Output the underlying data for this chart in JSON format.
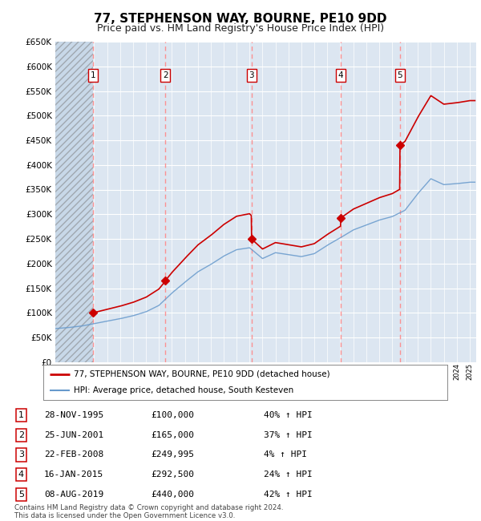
{
  "title": "77, STEPHENSON WAY, BOURNE, PE10 9DD",
  "subtitle": "Price paid vs. HM Land Registry's House Price Index (HPI)",
  "title_fontsize": 11,
  "subtitle_fontsize": 9,
  "ylim": [
    0,
    650000
  ],
  "ytick_vals": [
    0,
    50000,
    100000,
    150000,
    200000,
    250000,
    300000,
    350000,
    400000,
    450000,
    500000,
    550000,
    600000,
    650000
  ],
  "xlim_start": 1993.0,
  "xlim_end": 2025.5,
  "fig_bg": "#ffffff",
  "plot_bg_color": "#dce6f1",
  "sales": [
    {
      "num": 1,
      "year": 1995.917,
      "price": 100000,
      "label": "1",
      "date": "28-NOV-1995",
      "pct": "40%"
    },
    {
      "num": 2,
      "year": 2001.486,
      "price": 165000,
      "label": "2",
      "date": "25-JUN-2001",
      "pct": "37%"
    },
    {
      "num": 3,
      "year": 2008.142,
      "price": 249995,
      "label": "3",
      "date": "22-FEB-2008",
      "pct": "4%"
    },
    {
      "num": 4,
      "year": 2015.042,
      "price": 292500,
      "label": "4",
      "date": "16-JAN-2015",
      "pct": "24%"
    },
    {
      "num": 5,
      "year": 2019.597,
      "price": 440000,
      "label": "5",
      "date": "08-AUG-2019",
      "pct": "42%"
    }
  ],
  "red_line_color": "#cc0000",
  "blue_line_color": "#6699cc",
  "vline_color": "#ff8888",
  "legend_label_red": "77, STEPHENSON WAY, BOURNE, PE10 9DD (detached house)",
  "legend_label_blue": "HPI: Average price, detached house, South Kesteven",
  "footer_text": "Contains HM Land Registry data © Crown copyright and database right 2024.\nThis data is licensed under the Open Government Licence v3.0.",
  "table_rows": [
    [
      "1",
      "28-NOV-1995",
      "£100,000",
      "40% ↑ HPI"
    ],
    [
      "2",
      "25-JUN-2001",
      "£165,000",
      "37% ↑ HPI"
    ],
    [
      "3",
      "22-FEB-2008",
      "£249,995",
      "4% ↑ HPI"
    ],
    [
      "4",
      "16-JAN-2015",
      "£292,500",
      "24% ↑ HPI"
    ],
    [
      "5",
      "08-AUG-2019",
      "£440,000",
      "42% ↑ HPI"
    ]
  ],
  "hpi_anchors_years": [
    1993,
    1994,
    1995,
    1996,
    1997,
    1998,
    1999,
    2000,
    2001,
    2002,
    2003,
    2004,
    2005,
    2006,
    2007,
    2008,
    2009,
    2010,
    2011,
    2012,
    2013,
    2014,
    2015,
    2016,
    2017,
    2018,
    2019,
    2020,
    2021,
    2022,
    2023,
    2024,
    2025
  ],
  "hpi_anchors_vals": [
    68000,
    70000,
    73000,
    78000,
    83000,
    88000,
    94000,
    102000,
    115000,
    140000,
    162000,
    183000,
    198000,
    215000,
    228000,
    232000,
    210000,
    222000,
    218000,
    214000,
    220000,
    237000,
    252000,
    268000,
    278000,
    288000,
    295000,
    308000,
    342000,
    372000,
    360000,
    362000,
    365000
  ]
}
